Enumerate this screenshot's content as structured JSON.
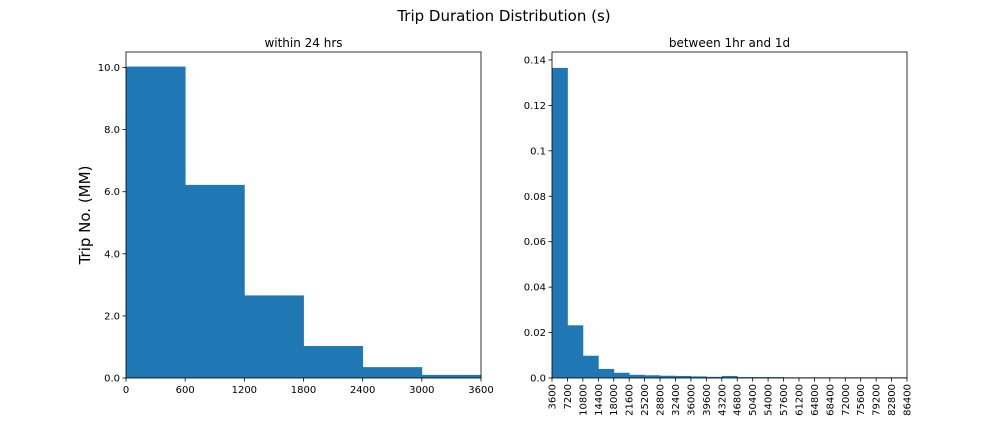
{
  "figure": {
    "suptitle": "Trip Duration Distribution (s)"
  },
  "chart_data": [
    {
      "type": "bar",
      "title": "within 24 hrs",
      "xlabel": "",
      "ylabel": "Trip No. (MM)",
      "xlim": [
        0,
        3600
      ],
      "ylim": [
        0,
        10.5
      ],
      "bin_edges": [
        0,
        600,
        1200,
        1800,
        2400,
        3000,
        3600
      ],
      "values": [
        10.03,
        6.22,
        2.66,
        1.03,
        0.35,
        0.1
      ],
      "xticks": [
        0,
        600,
        1200,
        1800,
        2400,
        3000,
        3600
      ],
      "xtick_labels": [
        "0",
        "600",
        "1200",
        "1800",
        "2400",
        "3000",
        "3600"
      ],
      "yticks": [
        0,
        2,
        4,
        6,
        8,
        10
      ],
      "ytick_labels": [
        "0.0",
        "2.0",
        "4.0",
        "6.0",
        "8.0",
        "10.0"
      ],
      "grid": false,
      "color": "#1f77b4"
    },
    {
      "type": "bar",
      "title": "between 1hr and 1d",
      "xlabel": "",
      "ylabel": "",
      "xlim": [
        3600,
        86400
      ],
      "ylim": [
        0,
        0.1435
      ],
      "bin_edges": [
        3600,
        7200,
        10800,
        14400,
        18000,
        21600,
        25200,
        28800,
        32400,
        36000,
        39600,
        43200,
        46800,
        50400,
        54000,
        57600,
        61200,
        64800,
        68400,
        72000,
        75600,
        79200,
        82800,
        86400
      ],
      "values": [
        0.1365,
        0.0232,
        0.0098,
        0.004,
        0.0023,
        0.0014,
        0.0012,
        0.001,
        0.0009,
        0.0007,
        0.0005,
        0.0009,
        0.0004,
        0.0004,
        0.0004,
        0.0003,
        0.0003,
        0.0003,
        0.0003,
        0.0003,
        0.0003,
        0.0003,
        0.0003
      ],
      "xticks": [
        3600,
        7200,
        10800,
        14400,
        18000,
        21600,
        25200,
        28800,
        32400,
        36000,
        39600,
        43200,
        46800,
        50400,
        54000,
        57600,
        61200,
        64800,
        68400,
        72000,
        75600,
        79200,
        82800,
        86400
      ],
      "xtick_labels": [
        "3600",
        "7200",
        "10800",
        "14400",
        "18000",
        "21600",
        "25200",
        "28800",
        "32400",
        "36000",
        "39600",
        "43200",
        "46800",
        "50400",
        "54000",
        "57600",
        "61200",
        "64800",
        "68400",
        "72000",
        "75600",
        "79200",
        "82800",
        "86400"
      ],
      "yticks": [
        0,
        0.02,
        0.04,
        0.06,
        0.08,
        0.1,
        0.12,
        0.14
      ],
      "ytick_labels": [
        "0.0",
        "0.02",
        "0.04",
        "0.06",
        "0.08",
        "0.1",
        "0.12",
        "0.14"
      ],
      "xtick_rotation": "vertical",
      "grid": false,
      "color": "#1f77b4"
    }
  ]
}
